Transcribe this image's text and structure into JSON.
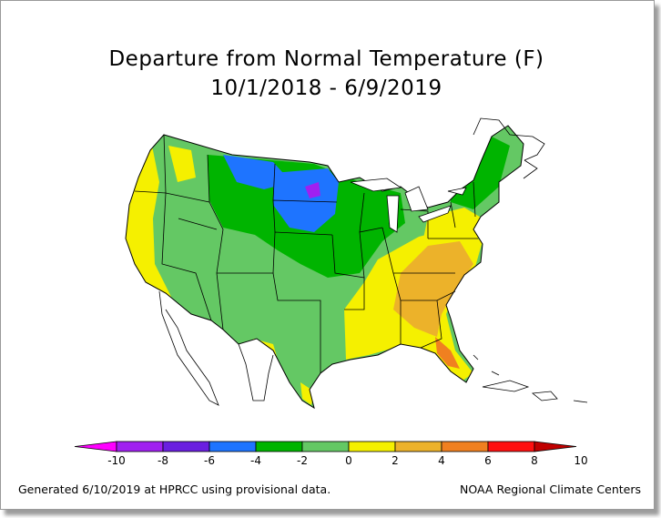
{
  "title": "Departure from Normal Temperature (F)",
  "subtitle": "10/1/2018 - 6/9/2019",
  "legend": {
    "ticks": [
      "-10",
      "-8",
      "-6",
      "-4",
      "-2",
      "0",
      "2",
      "4",
      "6",
      "8",
      "10"
    ],
    "colors": [
      "#ff00ff",
      "#a020f0",
      "#6a1fe0",
      "#1e74ff",
      "#00b400",
      "#64c864",
      "#f5f000",
      "#ecb22a",
      "#f08020",
      "#ff1010",
      "#c00000"
    ]
  },
  "footer": {
    "generated": "Generated 6/10/2019 at HPRCC using provisional data.",
    "credit": "NOAA Regional Climate Centers"
  },
  "map_colors": {
    "ocean": "#ffffff",
    "outline": "#000000"
  }
}
